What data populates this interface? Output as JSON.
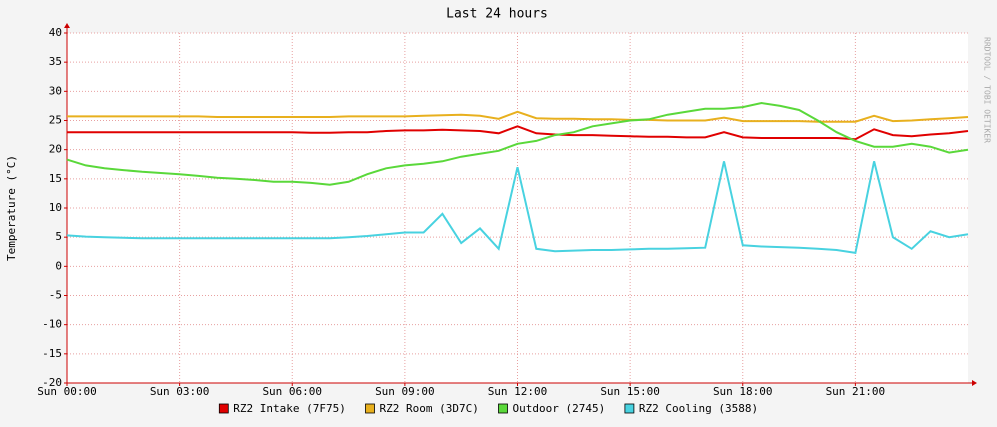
{
  "chart_data": {
    "type": "line",
    "title": "Last 24 hours",
    "y_label": "Temperature (°C)",
    "watermark": "RRDTOOL / TOBI OETIKER",
    "x": [
      0,
      0.5,
      1,
      1.5,
      2,
      2.5,
      3,
      3.5,
      4,
      4.5,
      5,
      5.5,
      6,
      6.5,
      7,
      7.5,
      8,
      8.5,
      9,
      9.5,
      10,
      10.5,
      11,
      11.5,
      12,
      12.5,
      13,
      13.5,
      14,
      14.5,
      15,
      15.5,
      16,
      16.5,
      17,
      17.5,
      18,
      18.5,
      19,
      19.5,
      20,
      20.5,
      21,
      21.5,
      22,
      22.5,
      23,
      23.5,
      24
    ],
    "xlim": [
      0,
      24
    ],
    "xticks": [
      {
        "value": 0,
        "label": "Sun 00:00"
      },
      {
        "value": 3,
        "label": "Sun 03:00"
      },
      {
        "value": 6,
        "label": "Sun 06:00"
      },
      {
        "value": 9,
        "label": "Sun 09:00"
      },
      {
        "value": 12,
        "label": "Sun 12:00"
      },
      {
        "value": 15,
        "label": "Sun 15:00"
      },
      {
        "value": 18,
        "label": "Sun 18:00"
      },
      {
        "value": 21,
        "label": "Sun 21:00"
      }
    ],
    "ylim": [
      -20,
      40
    ],
    "yticks": [
      -20,
      -15,
      -10,
      -5,
      0,
      5,
      10,
      15,
      20,
      25,
      30,
      35,
      40
    ],
    "grid": true,
    "series": [
      {
        "name": "RZ2 Intake (7F75)",
        "color": "#e00000",
        "values": [
          23,
          23,
          23,
          23,
          23,
          23,
          23,
          23,
          23,
          23,
          23,
          23,
          23,
          22.9,
          22.9,
          23,
          23,
          23.2,
          23.3,
          23.3,
          23.4,
          23.3,
          23.2,
          22.8,
          24,
          22.8,
          22.6,
          22.5,
          22.5,
          22.4,
          22.3,
          22.2,
          22.2,
          22.1,
          22.1,
          23,
          22.1,
          22,
          22,
          22,
          22,
          22,
          21.8,
          23.5,
          22.5,
          22.3,
          22.6,
          22.8,
          23.2
        ]
      },
      {
        "name": "RZ2 Room (3D7C)",
        "color": "#e8b01e",
        "values": [
          25.7,
          25.7,
          25.7,
          25.7,
          25.7,
          25.7,
          25.7,
          25.7,
          25.6,
          25.6,
          25.6,
          25.6,
          25.6,
          25.6,
          25.6,
          25.7,
          25.7,
          25.7,
          25.7,
          25.8,
          25.9,
          26,
          25.8,
          25.3,
          26.5,
          25.4,
          25.3,
          25.3,
          25.2,
          25.2,
          25.1,
          25.1,
          25,
          25,
          25,
          25.5,
          24.9,
          24.9,
          24.9,
          24.9,
          24.8,
          24.8,
          24.8,
          25.8,
          24.9,
          25,
          25.2,
          25.4,
          25.6
        ]
      },
      {
        "name": "Outdoor (2745)",
        "color": "#5ad83a",
        "values": [
          18.3,
          17.3,
          16.8,
          16.5,
          16.2,
          16,
          15.8,
          15.5,
          15.2,
          15,
          14.8,
          14.5,
          14.5,
          14.3,
          14,
          14.5,
          15.8,
          16.8,
          17.3,
          17.6,
          18,
          18.8,
          19.3,
          19.8,
          21,
          21.5,
          22.5,
          23,
          24,
          24.5,
          25,
          25.2,
          26,
          26.5,
          27,
          27,
          27.3,
          28,
          27.5,
          26.8,
          25,
          23,
          21.5,
          20.5,
          20.5,
          21,
          20.5,
          19.5,
          20
        ]
      },
      {
        "name": "RZ2 Cooling (3588)",
        "color": "#48d2e0",
        "values": [
          5.3,
          5.1,
          5,
          4.9,
          4.8,
          4.8,
          4.8,
          4.8,
          4.8,
          4.8,
          4.8,
          4.8,
          4.8,
          4.8,
          4.8,
          5,
          5.2,
          5.5,
          5.8,
          5.8,
          9,
          4,
          6.5,
          3,
          17,
          3,
          2.6,
          2.7,
          2.8,
          2.8,
          2.9,
          3,
          3,
          3.1,
          3.2,
          18,
          3.6,
          3.4,
          3.3,
          3.2,
          3,
          2.8,
          2.3,
          18,
          5,
          3,
          6,
          5,
          5.5
        ]
      }
    ]
  }
}
